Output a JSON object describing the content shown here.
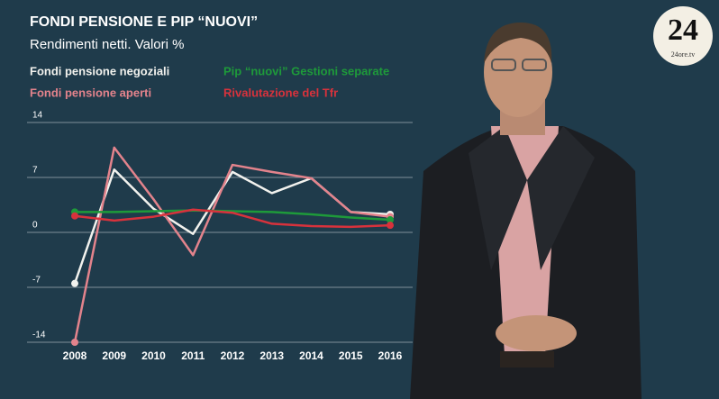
{
  "chart_data": {
    "type": "line",
    "title": "FONDI PENSIONE E PIP “NUOVI”",
    "subtitle": "Rendimenti netti. Valori %",
    "categories": [
      "2008",
      "2009",
      "2010",
      "2011",
      "2012",
      "2013",
      "2014",
      "2015",
      "2016"
    ],
    "series": [
      {
        "name": "Fondi pensione negoziali",
        "color": "#f2f2ee",
        "values": [
          -6.5,
          8.0,
          3.0,
          -0.2,
          7.7,
          5.0,
          6.9,
          2.6,
          2.3
        ]
      },
      {
        "name": "Fondi pensione aperti",
        "color": "#e3838c",
        "values": [
          -14.0,
          10.8,
          4.2,
          -2.9,
          8.6,
          7.7,
          6.9,
          2.6,
          2.0
        ]
      },
      {
        "name": "Pip “nuovi” Gestioni separate",
        "color": "#1e9a3a",
        "values": [
          2.6,
          2.6,
          2.7,
          2.8,
          2.7,
          2.6,
          2.3,
          1.9,
          1.6
        ]
      },
      {
        "name": "Rivalutazione del Tfr",
        "color": "#d8323c",
        "values": [
          2.1,
          1.5,
          2.0,
          2.9,
          2.5,
          1.1,
          0.8,
          0.7,
          0.9
        ]
      }
    ],
    "ylim": [
      -14,
      14
    ],
    "yticks": [
      14,
      7,
      0,
      -7,
      -14
    ],
    "grid": true
  },
  "logo": {
    "text": "24",
    "subtitle": "24ore.tv"
  }
}
